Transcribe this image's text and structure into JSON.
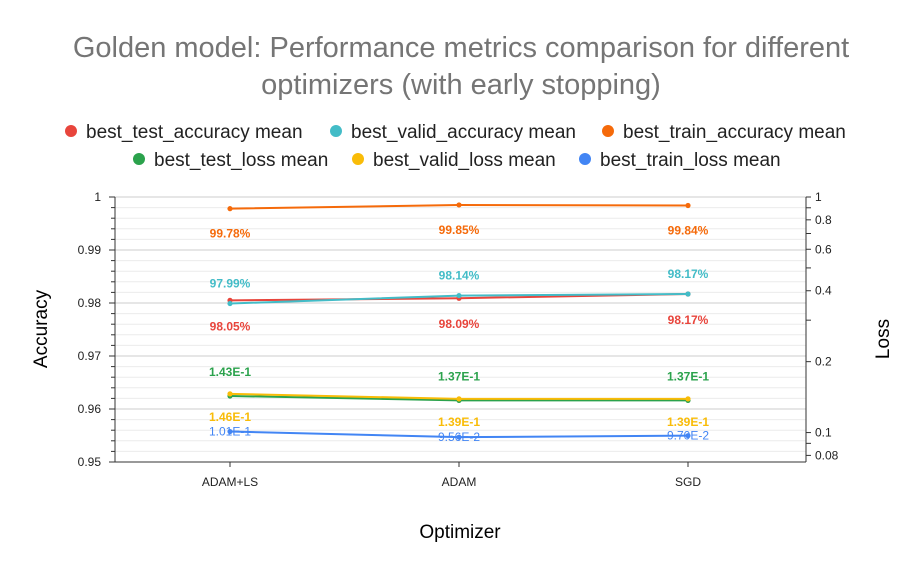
{
  "chart_data": {
    "type": "line",
    "title_lines": [
      "Golden model: Performance metrics comparison for different",
      "optimizers (with early stopping)"
    ],
    "xlabel": "Optimizer",
    "ylabel": "Accuracy",
    "y2label": "Loss",
    "categories": [
      "ADAM+LS",
      "ADAM",
      "SGD"
    ],
    "ylim": [
      0.95,
      1
    ],
    "y_ticks": [
      "1",
      "0.99",
      "0.98",
      "0.97",
      "0.96",
      "0.95"
    ],
    "y_tick_values": [
      1,
      0.99,
      0.98,
      0.97,
      0.96,
      0.95
    ],
    "y2_scale": "log",
    "y2lim": [
      0.075,
      1
    ],
    "y2_ticks": [
      "1",
      "0.8",
      "0.6",
      "0.4",
      "0.2",
      "0.1",
      "0.08"
    ],
    "y2_tick_values": [
      1,
      0.8,
      0.6,
      0.4,
      0.2,
      0.1,
      0.08
    ],
    "legend_position": "top",
    "grid": true,
    "series": [
      {
        "name": "best_test_accuracy mean",
        "color": "#e8453c",
        "axis": "left",
        "values": [
          0.9805,
          0.9809,
          0.9817
        ],
        "labels": [
          "98.05%",
          "98.09%",
          "98.17%"
        ],
        "label_pos": "below",
        "label_bold": true
      },
      {
        "name": "best_valid_accuracy mean",
        "color": "#43bcc7",
        "axis": "left",
        "values": [
          0.9799,
          0.9814,
          0.9817
        ],
        "labels": [
          "97.99%",
          "98.14%",
          "98.17%"
        ],
        "label_pos": "above",
        "label_bold": true
      },
      {
        "name": "best_train_accuracy mean",
        "color": "#f56a0a",
        "axis": "left",
        "values": [
          0.9978,
          0.9985,
          0.9984
        ],
        "labels": [
          "99.78%",
          "99.85%",
          "99.84%"
        ],
        "label_pos": "below",
        "label_bold": true
      },
      {
        "name": "best_test_loss mean",
        "color": "#2ba24c",
        "axis": "right",
        "values": [
          0.143,
          0.137,
          0.137
        ],
        "labels": [
          "1.43E-1",
          "1.37E-1",
          "1.37E-1"
        ],
        "label_pos": "above",
        "label_bold": true
      },
      {
        "name": "best_valid_loss mean",
        "color": "#f9bc08",
        "axis": "right",
        "values": [
          0.146,
          0.139,
          0.139
        ],
        "labels": [
          "1.46E-1",
          "1.39E-1",
          "1.39E-1"
        ],
        "label_pos": "below",
        "label_bold": true
      },
      {
        "name": "best_train_loss mean",
        "color": "#4285f4",
        "axis": "right",
        "values": [
          0.101,
          0.0956,
          0.097
        ],
        "labels": [
          "1.01E-1",
          "9.56E-2",
          "9.70E-2"
        ],
        "label_pos": "center",
        "label_bold": false
      }
    ]
  }
}
